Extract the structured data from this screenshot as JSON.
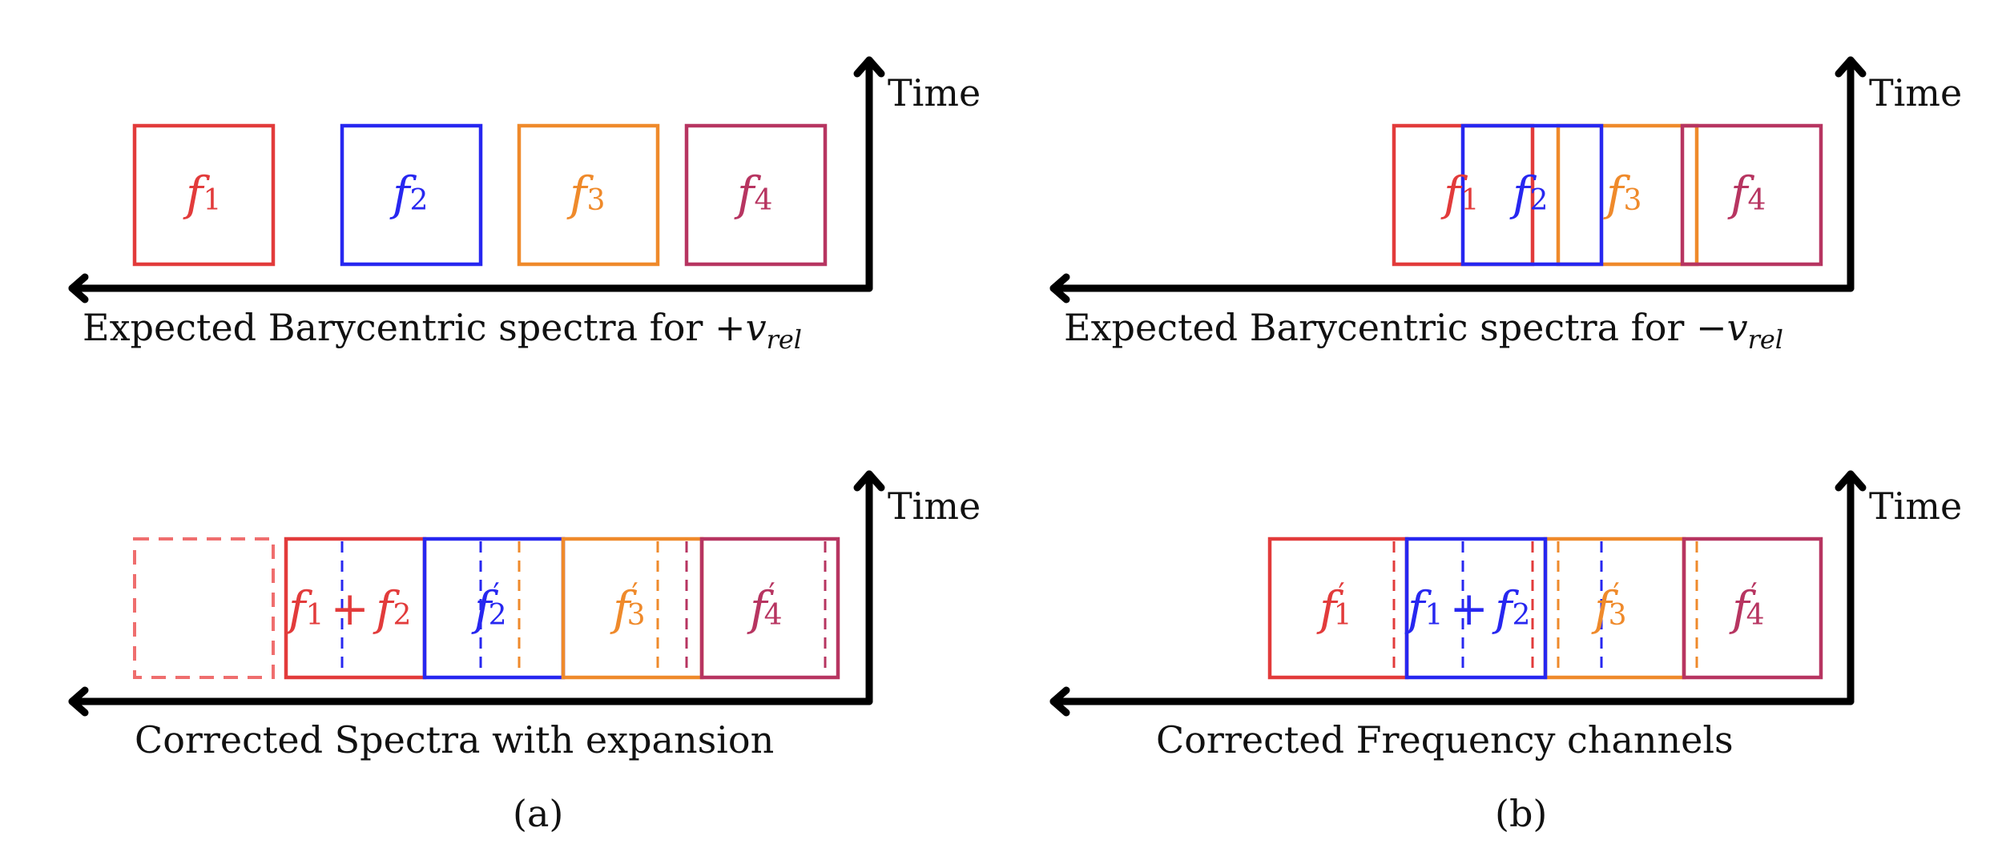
{
  "colors": {
    "f1": "#e23b3b",
    "f2": "#2727f0",
    "f3": "#ef8a2b",
    "f4": "#b73561",
    "axis": "#000000"
  },
  "panels": {
    "a_top": {
      "time_label": "Time",
      "caption_text": "Expected Barycentric spectra for +",
      "caption_var": "v",
      "caption_sub": "rel",
      "channels": [
        "f1",
        "f2",
        "f3",
        "f4"
      ]
    },
    "b_top": {
      "time_label": "Time",
      "caption_text": "Expected Barycentric spectra for −",
      "caption_var": "v",
      "caption_sub": "rel",
      "channels": [
        "f1",
        "f2",
        "f3",
        "f4"
      ]
    },
    "a_bottom": {
      "time_label": "Time",
      "caption": "Corrected Spectra with expansion",
      "channels": [
        "f1 + f2",
        "f2′",
        "f3′",
        "f4′"
      ]
    },
    "b_bottom": {
      "time_label": "Time",
      "caption": "Corrected Frequency channels",
      "channels": [
        "f1′",
        "f1 + f2",
        "f3′",
        "f4′"
      ]
    }
  },
  "subfigure_labels": {
    "a": "(a)",
    "b": "(b)"
  },
  "channel_text": {
    "f": "f",
    "plus": "+",
    "prime": "′",
    "n1": "1",
    "n2": "2",
    "n3": "3",
    "n4": "4"
  }
}
